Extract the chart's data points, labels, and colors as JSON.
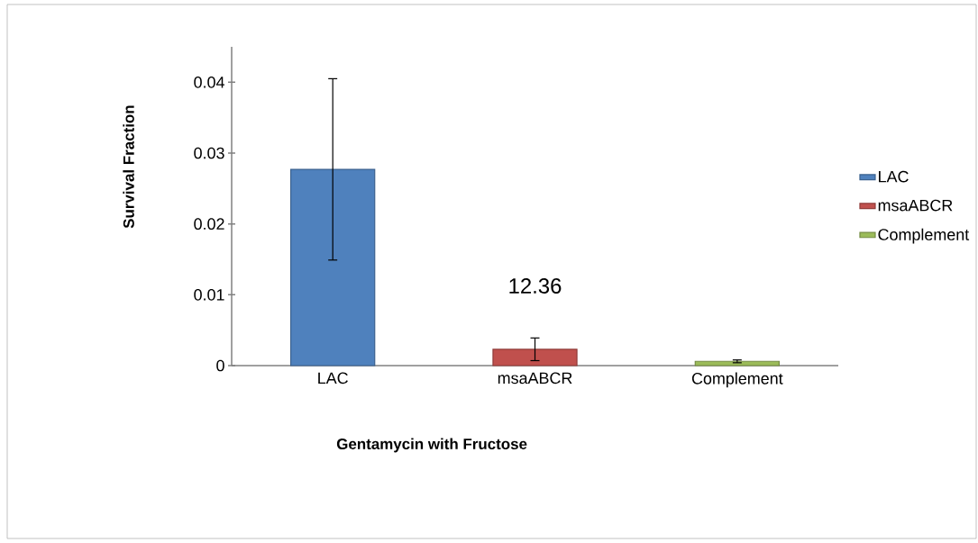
{
  "chart_data": {
    "type": "bar",
    "xlabel": "Gentamycin with Fructose",
    "ylabel": "Survival Fraction",
    "categories": [
      "LAC",
      "msaABCR",
      "Complement"
    ],
    "series": [
      {
        "name": "LAC",
        "color": "#4f81bd",
        "values": [
          0.0277,
          null,
          null
        ],
        "errors": [
          0.0128,
          null,
          null
        ]
      },
      {
        "name": "msaABCR",
        "color": "#c0504d",
        "values": [
          null,
          0.0023,
          null
        ],
        "errors": [
          null,
          0.0016,
          null
        ]
      },
      {
        "name": "Complement",
        "color": "#9bbb59",
        "values": [
          null,
          null,
          0.0006
        ],
        "errors": [
          null,
          null,
          0.0002
        ]
      }
    ],
    "ylim": [
      0,
      0.045
    ],
    "yticks": [
      0,
      0.01,
      0.02,
      0.03,
      0.04
    ],
    "legend": "right",
    "grid": false,
    "annotations": [
      "12.36"
    ]
  }
}
